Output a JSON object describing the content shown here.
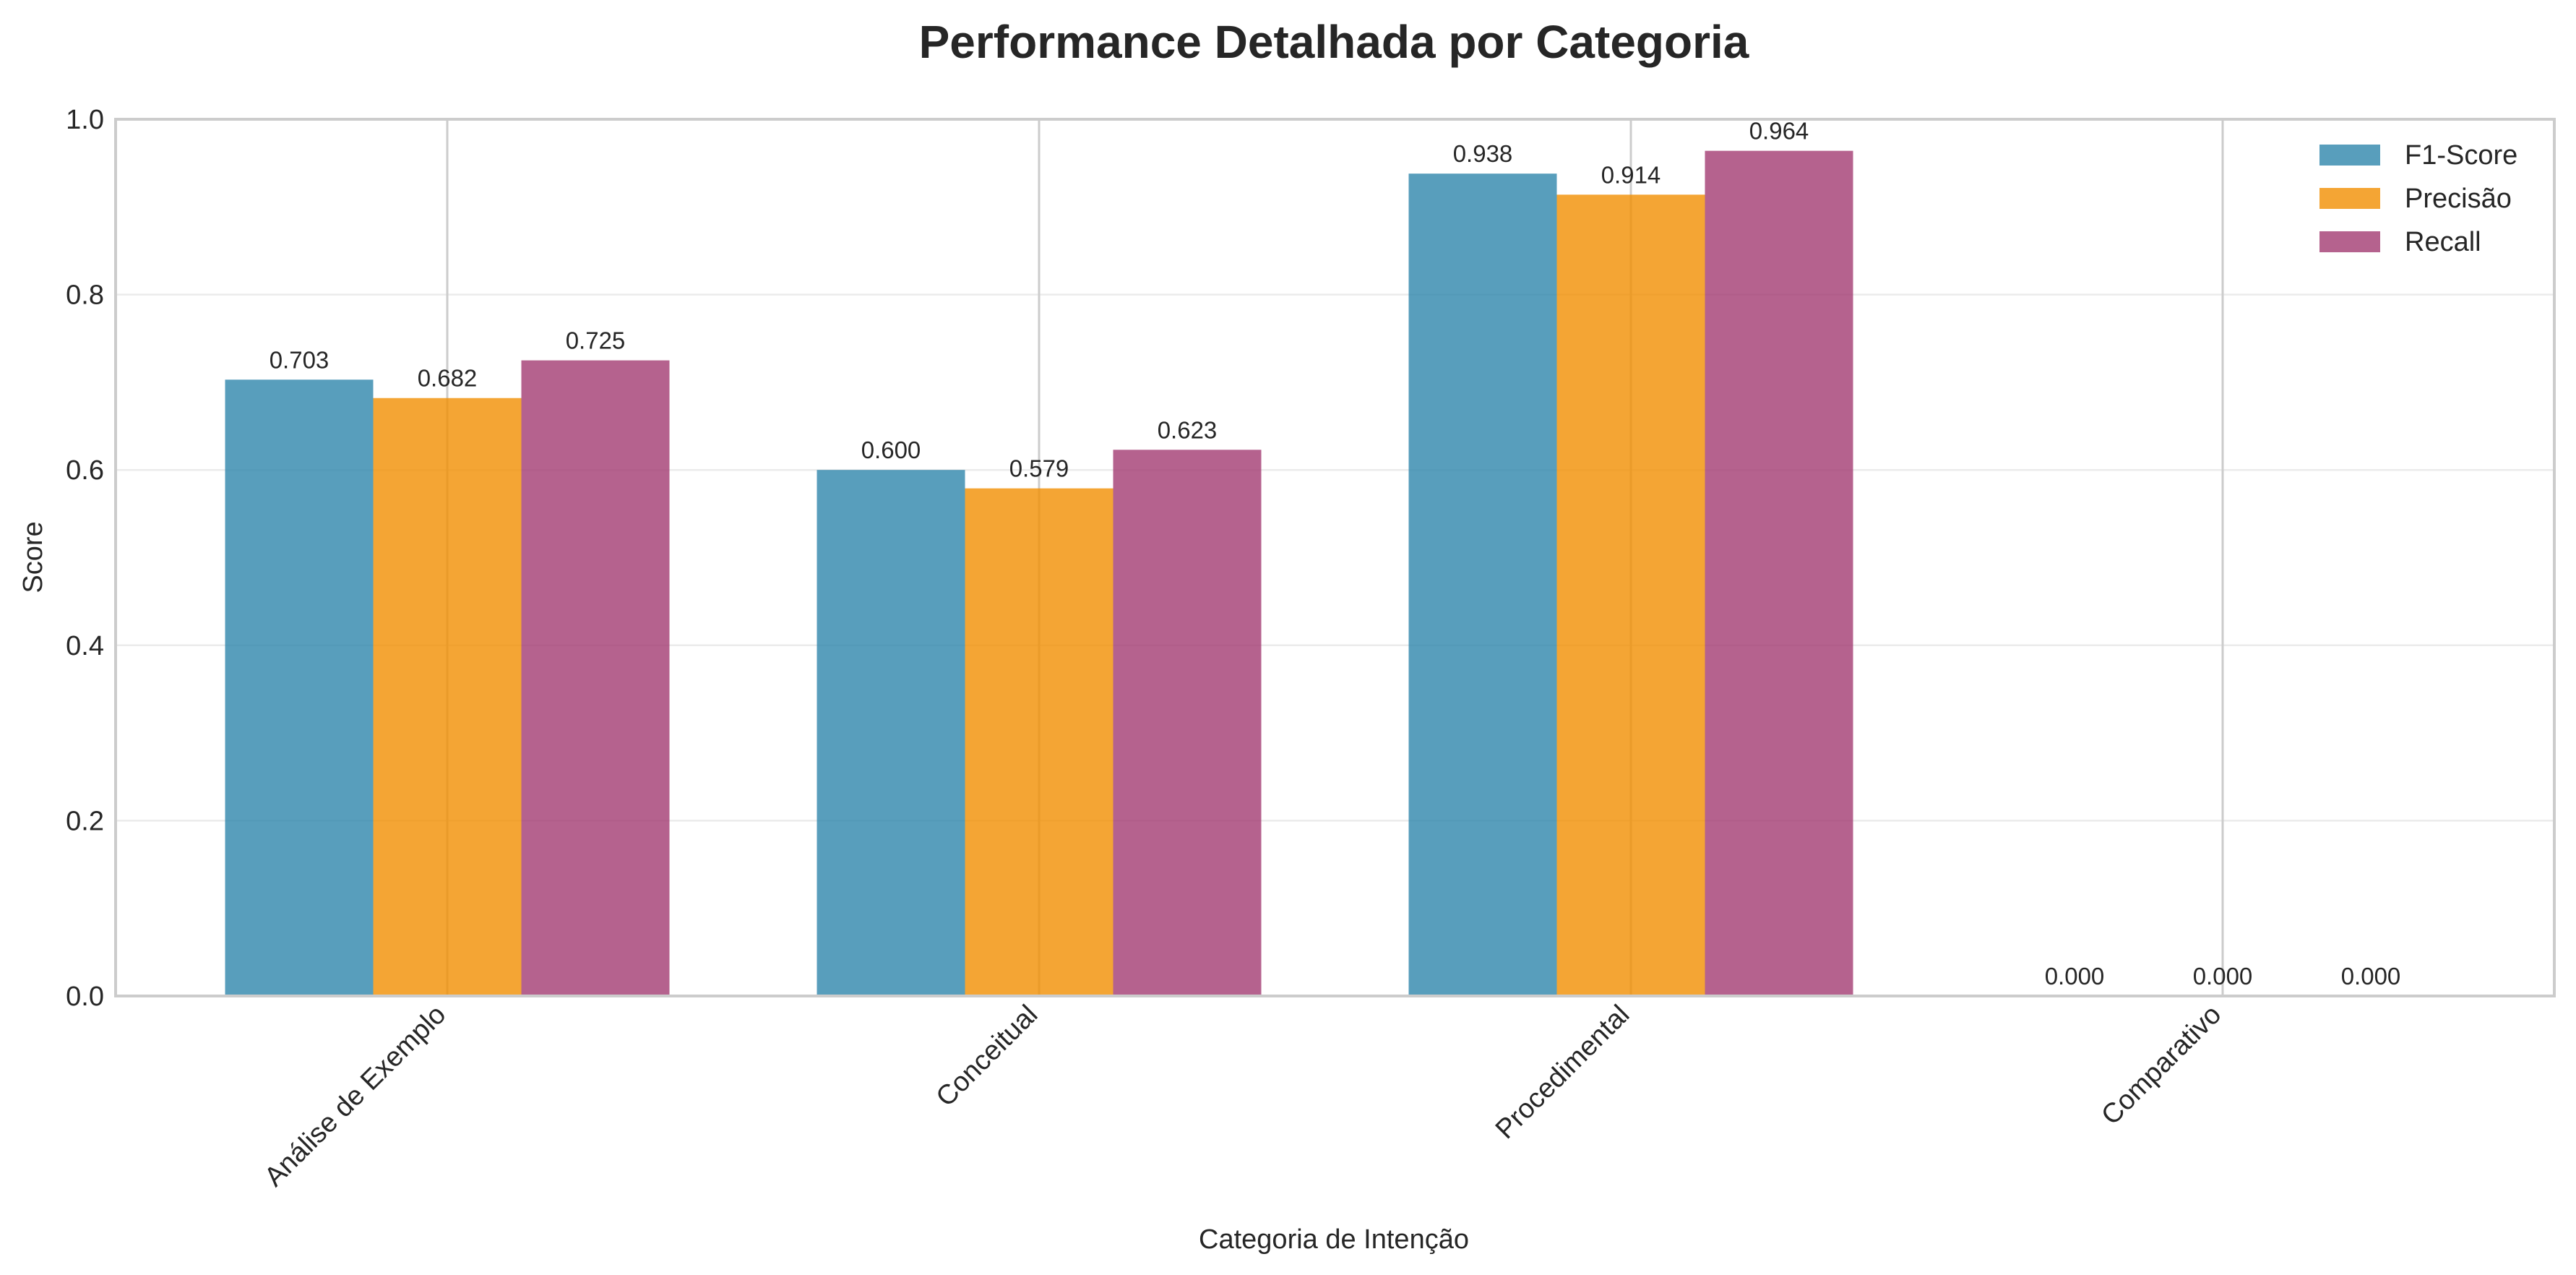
{
  "chart_data": {
    "type": "bar",
    "title": "Performance Detalhada por Categoria",
    "xlabel": "Categoria de Intenção",
    "ylabel": "Score",
    "ylim": [
      0,
      1.0
    ],
    "yticks": [
      "0.0",
      "0.2",
      "0.4",
      "0.6",
      "0.8",
      "1.0"
    ],
    "categories": [
      "Análise de Exemplo",
      "Conceitual",
      "Procedimental",
      "Comparativo"
    ],
    "series": [
      {
        "name": "F1-Score",
        "color": "#2E86AB",
        "values": [
          0.703,
          0.6,
          0.938,
          0.0
        ],
        "labels": [
          "0.703",
          "0.600",
          "0.938",
          "0.000"
        ]
      },
      {
        "name": "Precisão",
        "color": "#F18F01",
        "values": [
          0.682,
          0.579,
          0.914,
          0.0
        ],
        "labels": [
          "0.682",
          "0.579",
          "0.914",
          "0.000"
        ]
      },
      {
        "name": "Recall",
        "color": "#A23B72",
        "values": [
          0.725,
          0.623,
          0.964,
          0.0
        ],
        "labels": [
          "0.725",
          "0.623",
          "0.964",
          "0.000"
        ]
      }
    ],
    "grid": true,
    "legend": "top-right"
  }
}
